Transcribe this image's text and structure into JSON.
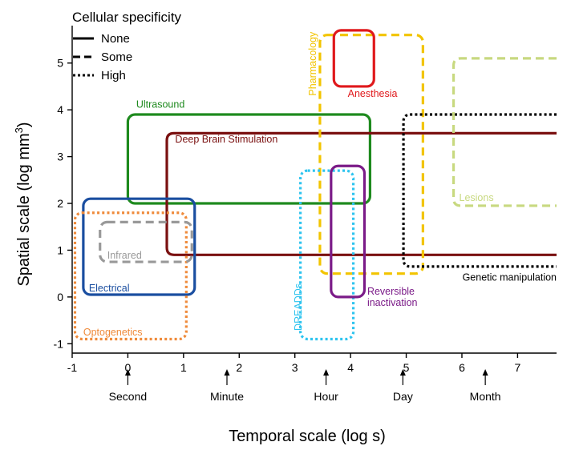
{
  "chart_data": {
    "type": "box-range",
    "xlabel": "Temporal scale (log s)",
    "ylabel_main": "Spatial scale (log mm",
    "ylabel_sup": "3",
    "ylabel_end": ")",
    "xlim": [
      -1,
      7.7
    ],
    "ylim": [
      -1.2,
      5.8
    ],
    "x_ticks": [
      -1,
      0,
      1,
      2,
      3,
      4,
      5,
      6,
      7
    ],
    "y_ticks": [
      -1,
      0,
      1,
      2,
      3,
      4,
      5
    ],
    "legend": {
      "title": "Cellular specificity",
      "position": "top-left",
      "entries": [
        {
          "label": "None",
          "style": "solid"
        },
        {
          "label": "Some",
          "style": "dashed"
        },
        {
          "label": "High",
          "style": "dotted"
        }
      ]
    },
    "time_markers": [
      {
        "label": "Second",
        "x": 0
      },
      {
        "label": "Minute",
        "x": 1.78
      },
      {
        "label": "Hour",
        "x": 3.56
      },
      {
        "label": "Day",
        "x": 4.94
      },
      {
        "label": "Month",
        "x": 6.42
      }
    ],
    "regions": [
      {
        "name": "Ultrasound",
        "style": "solid",
        "color": "#1e8a1e",
        "x": [
          0,
          4.35
        ],
        "y": [
          2,
          3.9
        ],
        "label_x": 0.15,
        "label_y": 4.05,
        "label_anchor": "start"
      },
      {
        "name": "Deep Brain Stimulation",
        "style": "solid",
        "color": "#7a1010",
        "x": [
          0.7,
          7.7
        ],
        "y": [
          0.9,
          3.5
        ],
        "open_right": true,
        "label_x": 0.85,
        "label_y": 3.3,
        "label_anchor": "start"
      },
      {
        "name": "Electrical",
        "style": "solid",
        "color": "#1a4ea0",
        "x": [
          -0.8,
          1.2
        ],
        "y": [
          0.05,
          2.1
        ],
        "label_x": -0.7,
        "label_y": 0.12,
        "label_anchor": "start"
      },
      {
        "name": "Optogenetics",
        "style": "dotted",
        "color": "#ef8a3a",
        "x": [
          -0.95,
          1.05
        ],
        "y": [
          -0.9,
          1.8
        ],
        "label_x": -0.8,
        "label_y": -0.82,
        "label_anchor": "start"
      },
      {
        "name": "Infrared",
        "style": "dashed",
        "color": "#999999",
        "x": [
          -0.5,
          1.15
        ],
        "y": [
          0.75,
          1.6
        ],
        "label_x": -0.37,
        "label_y": 0.82,
        "label_anchor": "start"
      },
      {
        "name": "Pharmacology",
        "style": "dashed",
        "color": "#f2c400",
        "x": [
          3.45,
          5.3
        ],
        "y": [
          0.5,
          5.6
        ],
        "label_x": 3.38,
        "label_y": 4.3,
        "label_anchor": "start",
        "label_rotate": -90
      },
      {
        "name": "Anesthesia",
        "style": "solid",
        "color": "#e0191c",
        "x": [
          3.7,
          4.42
        ],
        "y": [
          4.5,
          5.7
        ],
        "label_x": 3.95,
        "label_y": 4.28,
        "label_anchor": "start"
      },
      {
        "name": "DREADDs",
        "style": "dotted",
        "color": "#2ec4ef",
        "x": [
          3.1,
          4.05
        ],
        "y": [
          -0.9,
          2.7
        ],
        "label_x": 3.12,
        "label_y": -0.72,
        "label_anchor": "start",
        "label_rotate": -90
      },
      {
        "name": "Reversible\ninactivation",
        "style": "solid",
        "color": "#7b1b88",
        "x": [
          3.65,
          4.25
        ],
        "y": [
          0,
          2.8
        ],
        "label_x": 4.3,
        "label_y": 0.05,
        "label_anchor": "start"
      },
      {
        "name": "Genetic manipulation",
        "style": "dotted",
        "color": "#000000",
        "x": [
          4.95,
          7.7
        ],
        "y": [
          0.65,
          3.9
        ],
        "open_right": true,
        "label_x": 7.7,
        "label_y": 0.35,
        "label_anchor": "end"
      },
      {
        "name": "Lesions",
        "style": "dashed",
        "color": "#c8d980",
        "x": [
          5.85,
          7.7
        ],
        "y": [
          1.95,
          5.1
        ],
        "open_right": true,
        "label_x": 5.95,
        "label_y": 2.05,
        "label_anchor": "start"
      }
    ]
  }
}
